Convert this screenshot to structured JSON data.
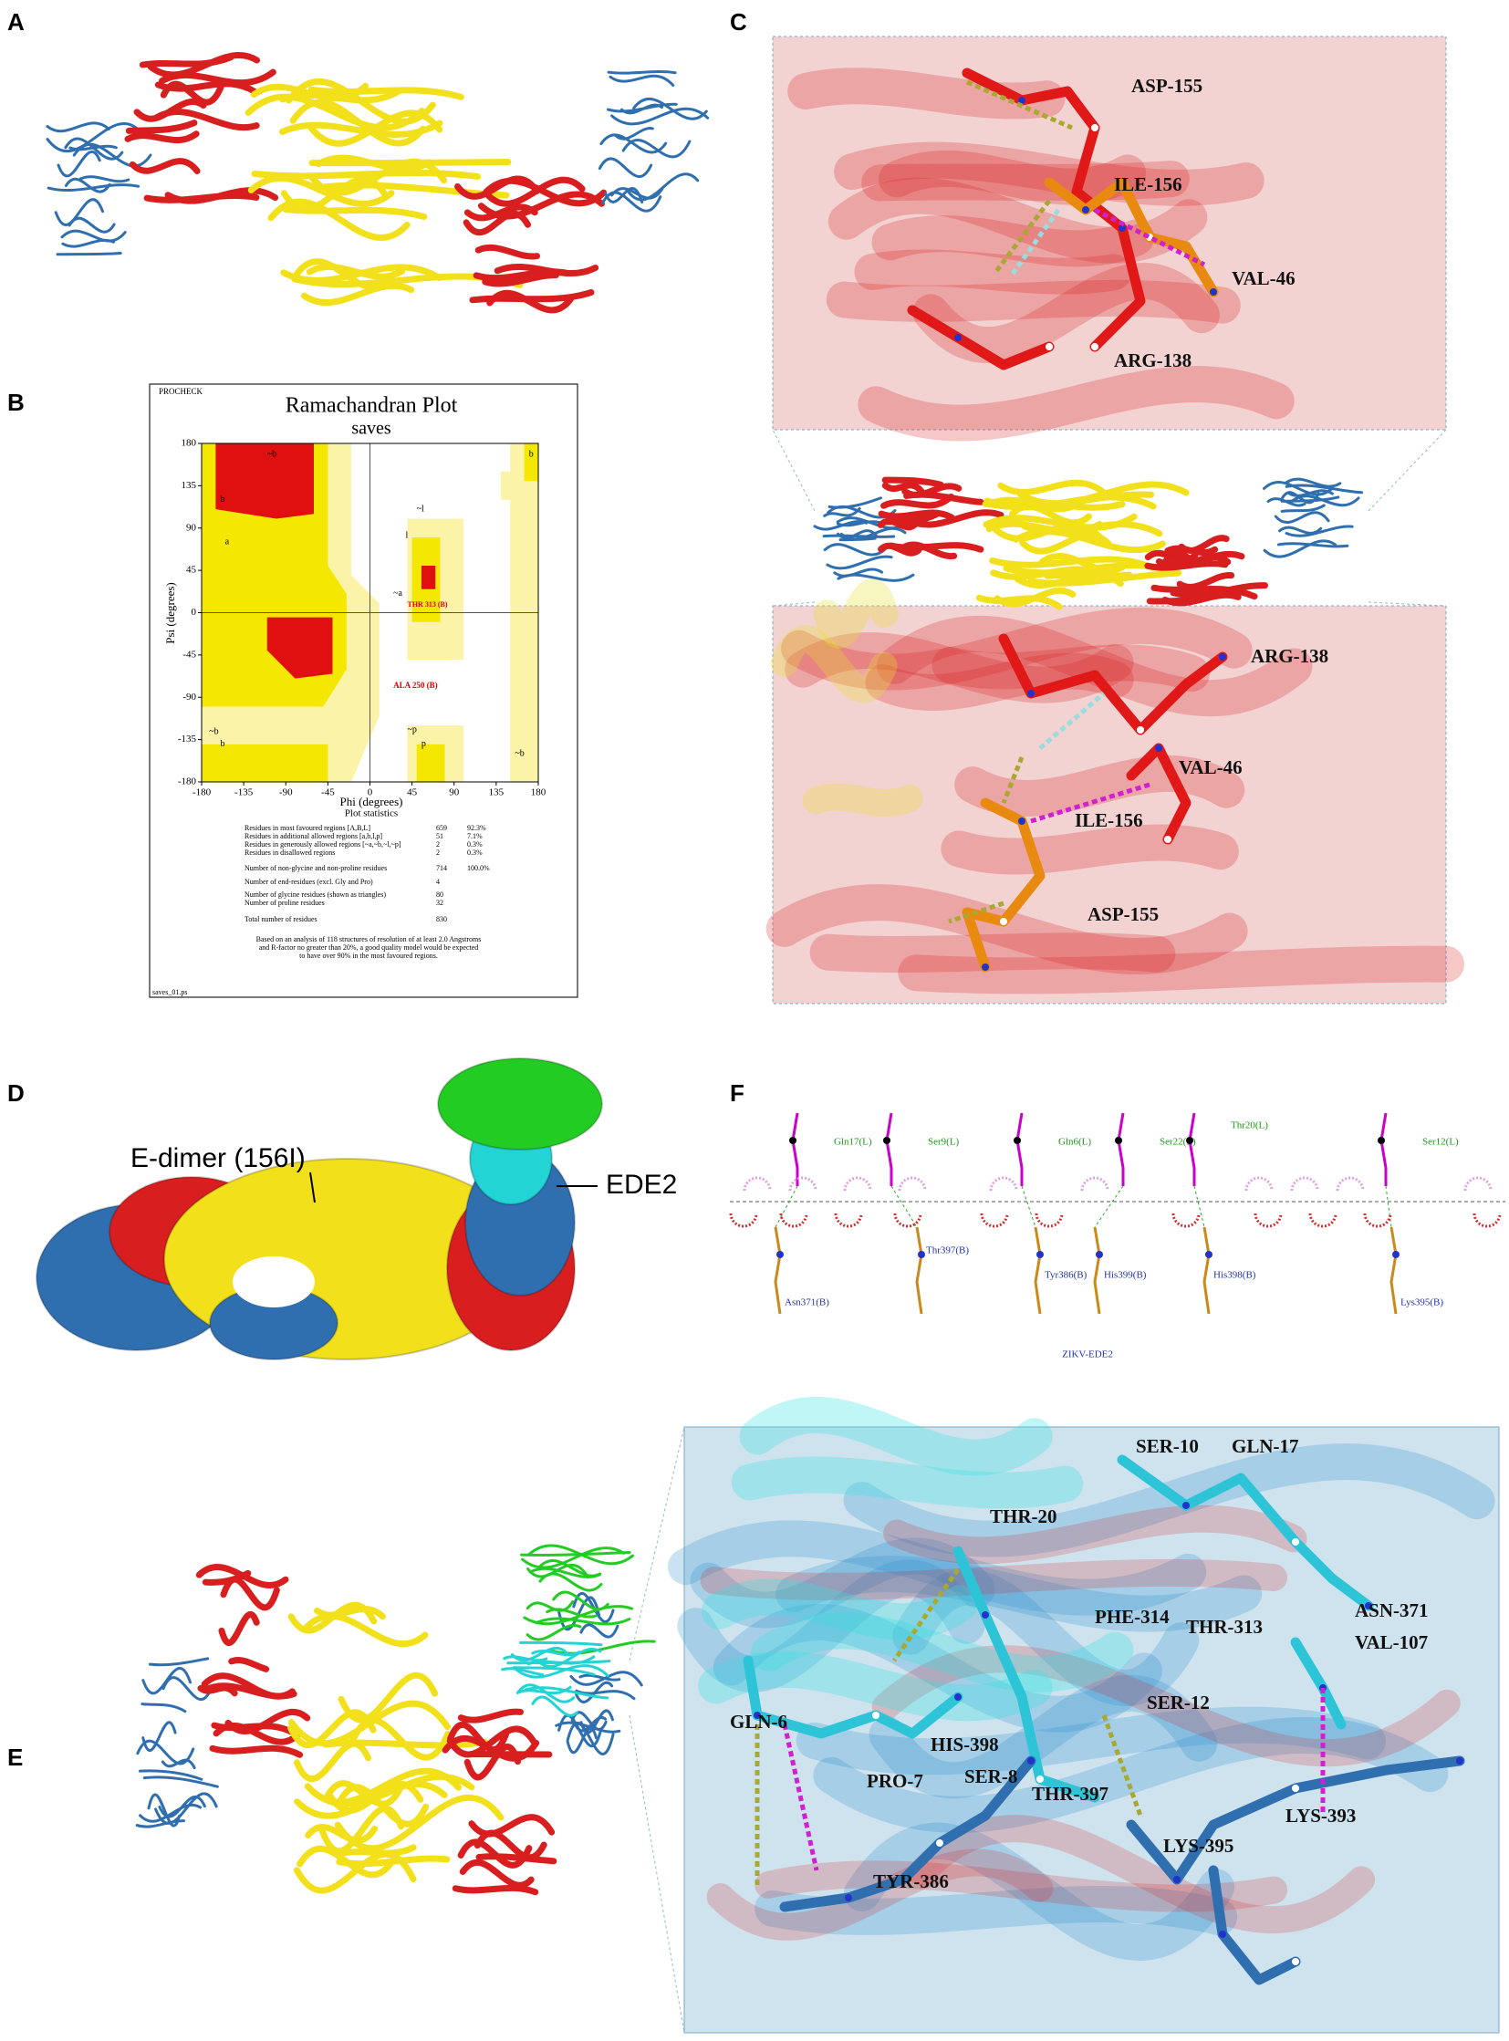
{
  "panels": {
    "a": "A",
    "b": "B",
    "c": "C",
    "d": "D",
    "e": "E",
    "f": "F"
  },
  "ramachandran": {
    "header": "PROCHECK",
    "title": "Ramachandran Plot",
    "subtitle": "saves",
    "x_label": "Phi (degrees)",
    "y_label": "Psi (degrees)",
    "xlim": [
      -180,
      180
    ],
    "ylim": [
      -180,
      180
    ],
    "xticks": [
      -180,
      -135,
      -90,
      -45,
      0,
      45,
      90,
      135,
      180
    ],
    "yticks": [
      -180,
      -135,
      -90,
      -45,
      0,
      45,
      90,
      135,
      180
    ],
    "region_labels": [
      "b",
      "~b",
      "a",
      "~l",
      "l",
      "~a",
      "~p",
      "p",
      "~b",
      "b",
      "~b",
      "b"
    ],
    "residue_labels": [
      "THR 313 (B)",
      "ALA 250 (B)"
    ],
    "stats_title": "Plot statistics",
    "stats": [
      {
        "label": "Residues in most favoured regions  [A,B,L]",
        "count": 659,
        "percent": "92.3%"
      },
      {
        "label": "Residues in additional allowed regions  [a,b,l,p]",
        "count": 51,
        "percent": "7.1%"
      },
      {
        "label": "Residues in generously allowed regions  [~a,~b,~l,~p]",
        "count": 2,
        "percent": "0.3%"
      },
      {
        "label": "Residues in disallowed regions",
        "count": 2,
        "percent": "0.3%"
      },
      {
        "label": "Number of non-glycine and non-proline residues",
        "count": 714,
        "percent": "100.0%"
      },
      {
        "label": "Number of end-residues (excl. Gly and Pro)",
        "count": 4
      },
      {
        "label": "Number of glycine residues (shown as triangles)",
        "count": 80
      },
      {
        "label": "Number of proline residues",
        "count": 32
      },
      {
        "label": "Total number of residues",
        "count": 830
      }
    ],
    "note": [
      "Based on an analysis of 118 structures of resolution of at least 2.0 Angstroms",
      "and R-factor no greater than 20%, a good quality model would be expected",
      "to have over 90% in the most favoured regions."
    ],
    "footer": "saves_01.ps"
  },
  "panel_c": {
    "top_labels": [
      "ASP-155",
      "ILE-156",
      "VAL-46",
      "ARG-138"
    ],
    "bottom_labels": [
      "ARG-138",
      "VAL-46",
      "ILE-156",
      "ASP-155"
    ]
  },
  "panel_d": {
    "dimer_label": "E-dimer (156I)",
    "ede_label": "EDE2"
  },
  "panel_f": {
    "ligand_residues": [
      "Gln17(L)",
      "Ser9(L)",
      "Gln6(L)",
      "Ser22(L)",
      "Thr20(L)",
      "Ser12(L)"
    ],
    "receptor_residues": [
      "Asn371(B)",
      "Thr397(B)",
      "Tyr386(B)",
      "His399(B)",
      "His398(B)",
      "Lys395(B)"
    ],
    "caption": "ZIKV-EDE2"
  },
  "panel_e": {
    "labels": [
      "SER-10",
      "GLN-17",
      "THR-20",
      "ASN-371",
      "PHE-314",
      "THR-313",
      "VAL-107",
      "SER-12",
      "GLN-6",
      "HIS-398",
      "PRO-7",
      "SER-8",
      "THR-397",
      "LYS-395",
      "LYS-393",
      "TYR-386"
    ]
  }
}
